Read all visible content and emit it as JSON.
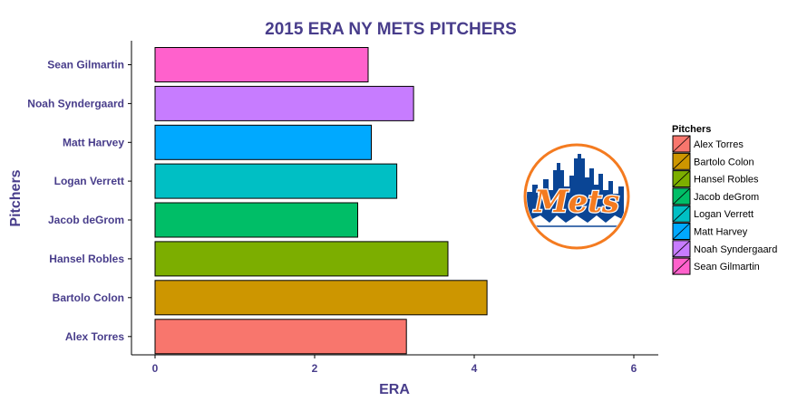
{
  "chart_data": {
    "type": "bar",
    "orientation": "horizontal",
    "title": "2015 ERA NY METS PITCHERS",
    "xlabel": "ERA",
    "ylabel": "Pitchers",
    "xlim": [
      0,
      6.3
    ],
    "x_ticks": [
      0,
      2,
      4,
      6
    ],
    "grid": false,
    "legend_position": "right",
    "legend_title": "Pitchers",
    "categories": [
      "Alex Torres",
      "Bartolo Colon",
      "Hansel Robles",
      "Jacob deGrom",
      "Logan Verrett",
      "Matt Harvey",
      "Noah Syndergaard",
      "Sean Gilmartin"
    ],
    "values": [
      3.15,
      4.16,
      3.67,
      2.54,
      3.03,
      2.71,
      3.24,
      2.67
    ],
    "colors": [
      "#f8766d",
      "#cd9600",
      "#7cae00",
      "#00be67",
      "#00bfc4",
      "#00a9ff",
      "#c77cff",
      "#ff61cc"
    ]
  },
  "logo": {
    "text": "Mets",
    "colors": {
      "blue": "#0a4595",
      "orange": "#f47b20",
      "white": "#ffffff"
    }
  },
  "colors": {
    "text": "#483d8b",
    "bar_outline": "#000000"
  }
}
